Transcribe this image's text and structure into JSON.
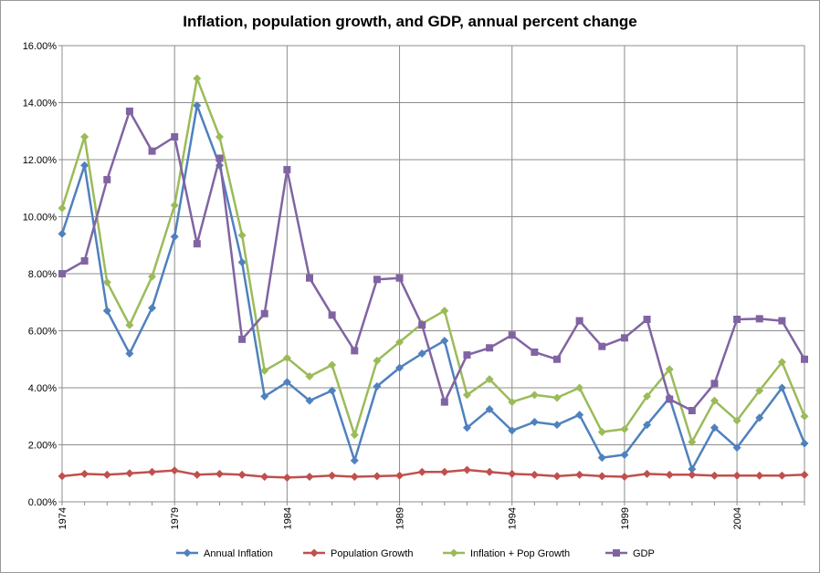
{
  "chart_data": {
    "type": "line",
    "title": "Inflation, population growth, and GDP, annual percent change",
    "xlabel": "",
    "ylabel": "",
    "x": [
      1974,
      1975,
      1976,
      1977,
      1978,
      1979,
      1980,
      1981,
      1982,
      1983,
      1984,
      1985,
      1986,
      1987,
      1988,
      1989,
      1990,
      1991,
      1992,
      1993,
      1994,
      1995,
      1996,
      1997,
      1998,
      1999,
      2000,
      2001,
      2002,
      2003,
      2004,
      2005,
      2006,
      2007
    ],
    "x_tick_labels": [
      "1974",
      "1979",
      "1984",
      "1989",
      "1994",
      "1999",
      "2004"
    ],
    "y_tick_labels": [
      "0.00%",
      "2.00%",
      "4.00%",
      "6.00%",
      "8.00%",
      "10.00%",
      "12.00%",
      "14.00%",
      "16.00%"
    ],
    "ylim": [
      0,
      16
    ],
    "grid": true,
    "legend_position": "bottom",
    "series": [
      {
        "name": "Annual Inflation",
        "color": "#4f81bd",
        "marker": "diamond",
        "values": [
          9.4,
          11.8,
          6.7,
          5.2,
          6.8,
          9.3,
          13.9,
          11.8,
          8.4,
          3.7,
          4.2,
          3.55,
          3.9,
          1.45,
          4.05,
          4.7,
          5.2,
          5.65,
          2.6,
          3.25,
          2.5,
          2.8,
          2.7,
          3.05,
          1.55,
          1.65,
          2.7,
          3.65,
          1.15,
          2.6,
          1.9,
          2.95,
          4.0,
          2.05
        ]
      },
      {
        "name": "Population Growth",
        "color": "#c0504d",
        "marker": "diamond",
        "values": [
          0.9,
          0.98,
          0.95,
          1.0,
          1.05,
          1.1,
          0.95,
          0.98,
          0.95,
          0.88,
          0.85,
          0.88,
          0.92,
          0.88,
          0.9,
          0.92,
          1.05,
          1.05,
          1.12,
          1.05,
          0.98,
          0.95,
          0.9,
          0.95,
          0.9,
          0.88,
          0.98,
          0.95,
          0.95,
          0.92,
          0.92,
          0.92,
          0.92,
          0.95
        ]
      },
      {
        "name": "Inflation + Pop Growth",
        "color": "#9bbb59",
        "marker": "diamond",
        "values": [
          10.3,
          12.8,
          7.7,
          6.2,
          7.9,
          10.4,
          14.85,
          12.8,
          9.35,
          4.6,
          5.05,
          4.4,
          4.8,
          2.35,
          4.95,
          5.6,
          6.25,
          6.7,
          3.75,
          4.3,
          3.5,
          3.75,
          3.65,
          4.0,
          2.45,
          2.55,
          3.7,
          4.65,
          2.1,
          3.55,
          2.85,
          3.9,
          4.9,
          3.0
        ]
      },
      {
        "name": "GDP",
        "color": "#8064a2",
        "marker": "square",
        "values": [
          8.0,
          8.45,
          11.3,
          13.7,
          12.3,
          12.8,
          9.05,
          12.05,
          5.7,
          6.6,
          11.65,
          7.85,
          6.55,
          5.3,
          7.8,
          7.85,
          6.2,
          3.5,
          5.15,
          5.4,
          5.85,
          5.25,
          5.0,
          6.35,
          5.45,
          5.75,
          6.4,
          3.6,
          3.2,
          4.15,
          6.4,
          6.42,
          6.35,
          5.0
        ]
      }
    ]
  }
}
